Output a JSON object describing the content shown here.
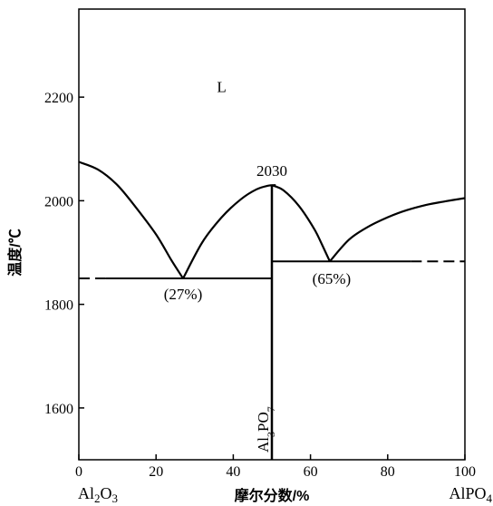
{
  "chart_data": {
    "type": "line",
    "title": "",
    "xlabel": "摩尔分数/%",
    "ylabel": "温度/℃",
    "xlim": [
      0,
      100
    ],
    "ylim": [
      1500,
      2370
    ],
    "x_ticks": [
      0,
      20,
      40,
      60,
      80,
      100
    ],
    "y_ticks": [
      1600,
      1800,
      2000,
      2200
    ],
    "end_labels": {
      "left": "Al2O3",
      "right": "AlPO4"
    },
    "phase_label": "L",
    "compound_label": "Al3PO7",
    "annotations": [
      {
        "text": "2030",
        "x": 50,
        "y": 2030
      },
      {
        "text": "(27%)",
        "x": 27,
        "y": 1850
      },
      {
        "text": "(65%)",
        "x": 65,
        "y": 1883
      }
    ],
    "liquidus_curves": [
      {
        "x": [
          0,
          5,
          10,
          15,
          20,
          24,
          27
        ],
        "y": [
          2075,
          2060,
          2030,
          1985,
          1935,
          1885,
          1850
        ]
      },
      {
        "x": [
          27,
          32,
          37,
          42,
          46,
          49,
          51
        ],
        "y": [
          1850,
          1920,
          1968,
          2003,
          2022,
          2029,
          2030
        ]
      },
      {
        "x": [
          50,
          53,
          57,
          61,
          63,
          65
        ],
        "y": [
          2030,
          2020,
          1990,
          1945,
          1915,
          1883
        ]
      },
      {
        "x": [
          65,
          70,
          75,
          80,
          85,
          90,
          95,
          100
        ],
        "y": [
          1883,
          1925,
          1950,
          1968,
          1982,
          1992,
          1999,
          2005
        ]
      }
    ],
    "eutectic_lines": [
      {
        "x": [
          0,
          50
        ],
        "y": [
          1850,
          1850
        ],
        "dashed_below_x": 7
      },
      {
        "x": [
          50,
          100
        ],
        "y": [
          1883,
          1883
        ],
        "dashed_above_x": 86
      }
    ],
    "compound_line": {
      "x": 50,
      "y": [
        1500,
        2030
      ]
    }
  }
}
